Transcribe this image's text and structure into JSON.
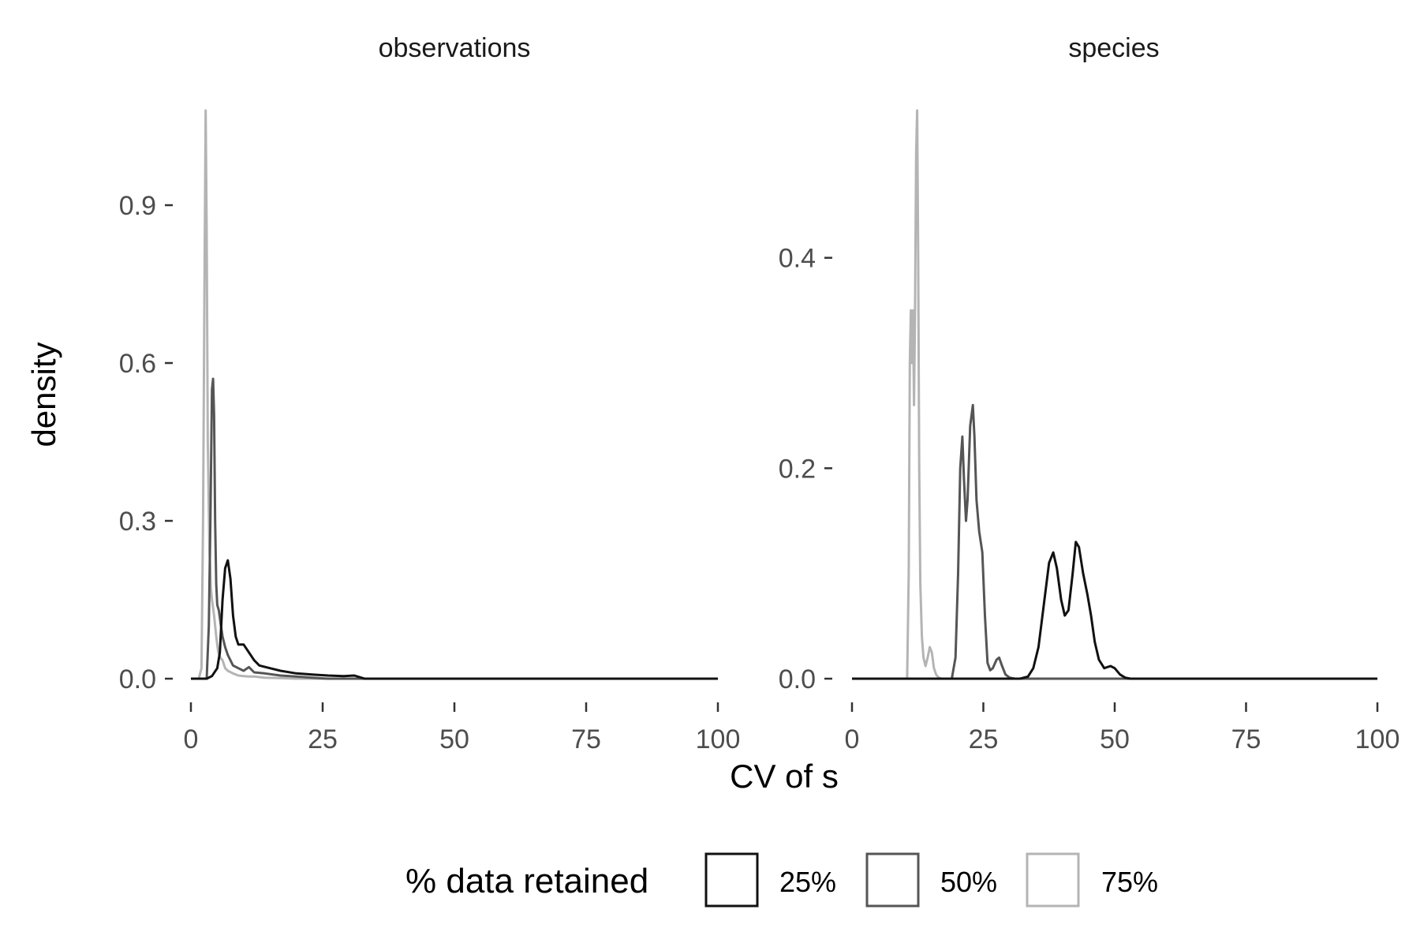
{
  "chart_data": {
    "type": "line",
    "facet_by": "data type",
    "xlabel": "CV of s",
    "ylabel": "density",
    "legend": {
      "title": "% data retained",
      "position": "bottom",
      "entries": [
        {
          "label": "25%",
          "color": "#111111"
        },
        {
          "label": "50%",
          "color": "#555555"
        },
        {
          "label": "75%",
          "color": "#b4b4b4"
        }
      ]
    },
    "grid": false,
    "panels": [
      {
        "strip": "observations",
        "xlim": [
          0,
          100
        ],
        "ylim": [
          0,
          1.08
        ],
        "x_ticks": [
          "0",
          "25",
          "50",
          "75",
          "100"
        ],
        "x_tick_values": [
          0,
          25,
          50,
          75,
          100
        ],
        "y_ticks": [
          "0.0",
          "0.3",
          "0.6",
          "0.9"
        ],
        "y_tick_values": [
          0,
          0.3,
          0.6,
          0.9
        ],
        "series": [
          {
            "name": "25%",
            "x": [
              0,
              3,
              4,
              5,
              5.5,
              6,
              6.5,
              7,
              7.5,
              8,
              8.5,
              9,
              10,
              11,
              12,
              13,
              15,
              17,
              20,
              23,
              26,
              29,
              31,
              33,
              100
            ],
            "y": [
              0,
              0,
              0.005,
              0.02,
              0.05,
              0.15,
              0.21,
              0.225,
              0.19,
              0.12,
              0.08,
              0.065,
              0.065,
              0.05,
              0.035,
              0.025,
              0.02,
              0.015,
              0.01,
              0.008,
              0.006,
              0.005,
              0.006,
              0,
              0
            ]
          },
          {
            "name": "50%",
            "x": [
              0,
              3,
              3.4,
              3.7,
              4,
              4.2,
              4.4,
              4.6,
              4.8,
              5,
              5.3,
              5.7,
              6,
              6.5,
              7,
              8,
              9,
              10,
              11,
              12,
              14,
              17,
              20,
              23,
              26,
              100
            ],
            "y": [
              0,
              0,
              0.1,
              0.3,
              0.55,
              0.57,
              0.5,
              0.3,
              0.18,
              0.14,
              0.13,
              0.1,
              0.08,
              0.06,
              0.045,
              0.025,
              0.02,
              0.015,
              0.022,
              0.012,
              0.01,
              0.006,
              0.004,
              0.002,
              0,
              0
            ]
          },
          {
            "name": "75%",
            "x": [
              0,
              1.5,
              2,
              2.3,
              2.6,
              2.8,
              3,
              3.2,
              3.5,
              3.8,
              4,
              4.4,
              4.8,
              5.2,
              5.6,
              6,
              6.5,
              7,
              8,
              9,
              10,
              11,
              12,
              14,
              17,
              20,
              100
            ],
            "y": [
              0,
              0,
              0.02,
              0.3,
              0.8,
              1.08,
              0.85,
              0.45,
              0.25,
              0.17,
              0.15,
              0.12,
              0.08,
              0.05,
              0.04,
              0.035,
              0.02,
              0.015,
              0.01,
              0.006,
              0.005,
              0.004,
              0.004,
              0.002,
              0.001,
              0,
              0
            ]
          }
        ]
      },
      {
        "strip": "species",
        "xlim": [
          0,
          100
        ],
        "ylim": [
          0,
          0.54
        ],
        "x_ticks": [
          "0",
          "25",
          "50",
          "75",
          "100"
        ],
        "x_tick_values": [
          0,
          25,
          50,
          75,
          100
        ],
        "y_ticks": [
          "0.0",
          "0.2",
          "0.4"
        ],
        "y_tick_values": [
          0,
          0.2,
          0.4
        ],
        "series": [
          {
            "name": "25%",
            "x": [
              0,
              32,
              33.5,
              34.5,
              35.5,
              36.5,
              37.5,
              38.3,
              39,
              39.8,
              40.5,
              41.2,
              42,
              42.6,
              43.2,
              44,
              44.8,
              45.5,
              46.2,
              47,
              48,
              49.2,
              50,
              51,
              52,
              53,
              54,
              100
            ],
            "y": [
              0,
              0,
              0.002,
              0.01,
              0.03,
              0.07,
              0.11,
              0.12,
              0.105,
              0.075,
              0.06,
              0.065,
              0.1,
              0.13,
              0.125,
              0.1,
              0.08,
              0.06,
              0.035,
              0.018,
              0.01,
              0.012,
              0.01,
              0.004,
              0.001,
              0,
              0,
              0
            ]
          },
          {
            "name": "50%",
            "x": [
              0,
              19,
              19.7,
              20.2,
              20.6,
              21,
              21.3,
              21.7,
              22,
              22.5,
              23,
              23.3,
              23.7,
              24.2,
              24.8,
              25.3,
              25.8,
              26.3,
              26.8,
              27.5,
              28,
              28.5,
              29.2,
              30,
              31,
              100
            ],
            "y": [
              0,
              0,
              0.02,
              0.1,
              0.2,
              0.23,
              0.19,
              0.15,
              0.17,
              0.24,
              0.26,
              0.23,
              0.17,
              0.14,
              0.12,
              0.06,
              0.015,
              0.008,
              0.01,
              0.018,
              0.02,
              0.013,
              0.004,
              0.001,
              0,
              0
            ]
          },
          {
            "name": "75%",
            "x": [
              0,
              10.5,
              10.8,
              11,
              11.2,
              11.4,
              11.6,
              11.8,
              12,
              12.2,
              12.4,
              12.6,
              12.8,
              13,
              13.3,
              13.6,
              14,
              14.4,
              14.8,
              15.2,
              15.6,
              16,
              16.5,
              17,
              100
            ],
            "y": [
              0,
              0,
              0.1,
              0.3,
              0.35,
              0.3,
              0.35,
              0.26,
              0.35,
              0.5,
              0.54,
              0.4,
              0.2,
              0.09,
              0.04,
              0.02,
              0.012,
              0.02,
              0.03,
              0.025,
              0.01,
              0.004,
              0.001,
              0,
              0
            ]
          }
        ]
      }
    ]
  }
}
